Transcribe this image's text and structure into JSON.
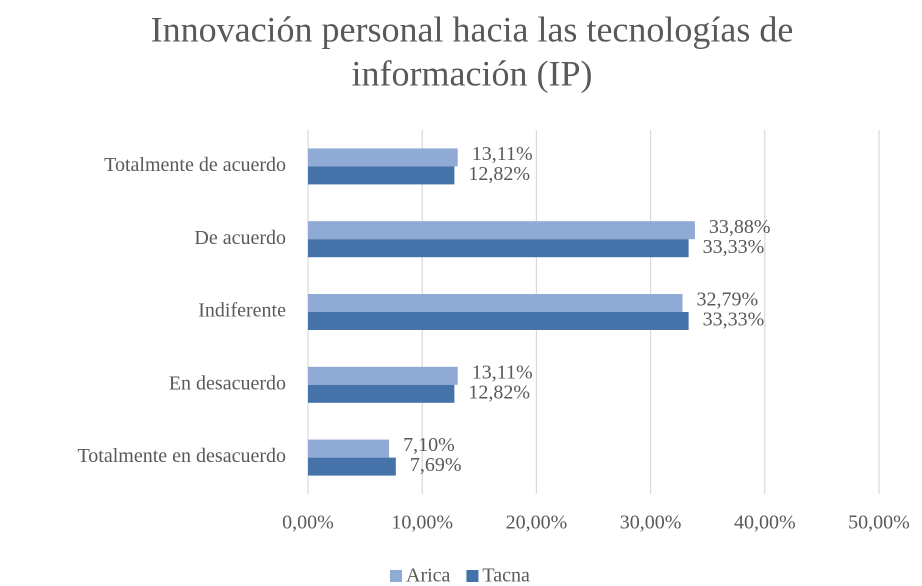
{
  "chart_data": {
    "type": "bar",
    "orientation": "horizontal",
    "title": [
      "Innovación personal hacia las tecnologías de",
      "información (IP)"
    ],
    "categories": [
      "Totalmente de acuerdo",
      "De acuerdo",
      "Indiferente",
      "En desacuerdo",
      "Totalmente en desacuerdo"
    ],
    "series": [
      {
        "name": "Arica",
        "color": "#8faad5",
        "values": [
          13.11,
          33.88,
          32.79,
          13.11,
          7.1
        ],
        "value_labels": [
          "13,11%",
          "33,88%",
          "32,79%",
          "13,11%",
          "7,10%"
        ]
      },
      {
        "name": "Tacna",
        "color": "#4672aa",
        "values": [
          12.82,
          33.33,
          33.33,
          12.82,
          7.69
        ],
        "value_labels": [
          "12,82%",
          "33,33%",
          "33,33%",
          "12,82%",
          "7,69%"
        ]
      }
    ],
    "xlim": [
      0,
      50
    ],
    "xticks": [
      {
        "value": 0,
        "label": "0,00%"
      },
      {
        "value": 10,
        "label": "10,00%"
      },
      {
        "value": 20,
        "label": "20,00%"
      },
      {
        "value": 30,
        "label": "30,00%"
      },
      {
        "value": 40,
        "label": "40,00%"
      },
      {
        "value": 50,
        "label": "50,00%"
      }
    ],
    "grid": true,
    "legend": "bottom"
  }
}
